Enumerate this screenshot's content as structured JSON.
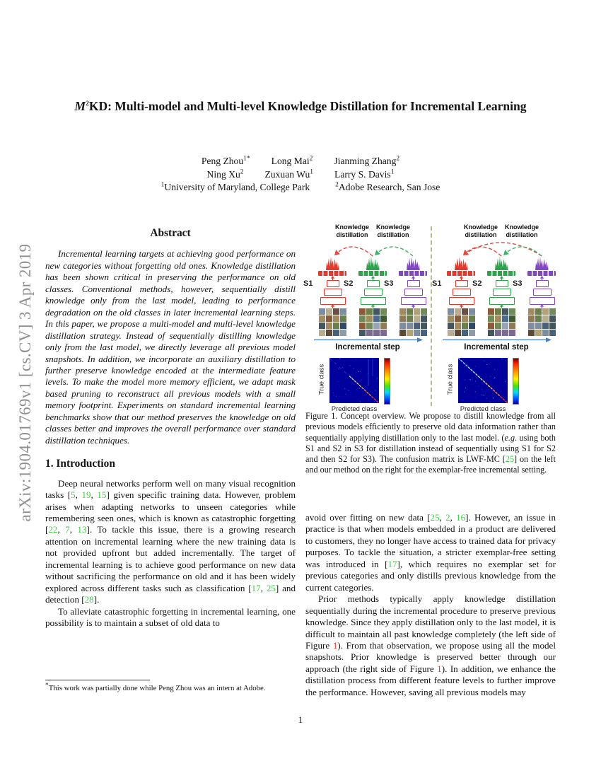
{
  "arxiv_banner": "arXiv:1904.01769v1  [cs.CV]  3 Apr 2019",
  "page_number": "1",
  "title": {
    "m": "M",
    "sup": "2",
    "rest": "KD: Multi-model and Multi-level Knowledge Distillation for Incremental Learning"
  },
  "authors": {
    "rows": [
      [
        {
          "name": "Peng Zhou",
          "sup": "1*"
        },
        {
          "name": "Long Mai",
          "sup": "2"
        },
        {
          "name": "Jianming Zhang",
          "sup": "2"
        }
      ],
      [
        {
          "name": "Ning Xu",
          "sup": "2"
        },
        {
          "name": "Zuxuan Wu",
          "sup": "1"
        },
        {
          "name": "Larry S. Davis",
          "sup": "1"
        }
      ]
    ],
    "affiliations": [
      {
        "sup": "1",
        "name": "University of Maryland, College Park"
      },
      {
        "sup": "2",
        "name": "Adobe Research, San Jose"
      }
    ]
  },
  "abstract": {
    "heading": "Abstract",
    "text": "Incremental learning targets at achieving good performance on new categories without forgetting old ones. Knowledge distillation has been shown critical in preserving the performance on old classes. Conventional methods, however, sequentially distill knowledge only from the last model, leading to performance degradation on the old classes in later incremental learning steps. In this paper, we propose a multi-model and multi-level knowledge distillation strategy. Instead of sequentially distilling knowledge only from the last model, we directly leverage all previous model snapshots. In addition, we incorporate an auxiliary distillation to further preserve knowledge encoded at the intermediate feature levels. To make the model more memory efficient, we adapt mask based pruning to reconstruct all previous models with a small memory footprint. Experiments on standard incremental learning benchmarks show that our method preserves the knowledge on old classes better and improves the overall performance over standard distillation techniques."
  },
  "sections": {
    "intro_heading": "1. Introduction"
  },
  "paragraphs": {
    "intro_p1": [
      {
        "t": "Deep neural networks perform well on many visual recognition tasks ["
      },
      {
        "c": "5"
      },
      {
        "t": ", "
      },
      {
        "c": "19"
      },
      {
        "t": ", "
      },
      {
        "c": "15"
      },
      {
        "t": "] given specific training data. However, problem arises when adapting networks to unseen categories while remembering seen ones, which is known as catastrophic forgetting ["
      },
      {
        "c": "22"
      },
      {
        "t": ", "
      },
      {
        "c": "7"
      },
      {
        "t": ", "
      },
      {
        "c": "13"
      },
      {
        "t": "]. To tackle this issue, there is a growing research attention on incremental learning where the new training data is not provided upfront but added incrementally. The target of incremental learning is to achieve good performance on new data without sacrificing the performance on old and it has been widely explored across different tasks such as classification ["
      },
      {
        "c": "17"
      },
      {
        "t": ", "
      },
      {
        "c": "25"
      },
      {
        "t": "] and detection ["
      },
      {
        "c": "28"
      },
      {
        "t": "]."
      }
    ],
    "intro_p2": [
      {
        "t": "To alleviate catastrophic forgetting in incremental learning, one possibility is to maintain a subset of old data to"
      }
    ],
    "right_p1": [
      {
        "t": "avoid over fitting on new data ["
      },
      {
        "c": "25"
      },
      {
        "t": ", "
      },
      {
        "c": "2"
      },
      {
        "t": ", "
      },
      {
        "c": "16"
      },
      {
        "t": "]. However, an issue in practice is that when models embedded in a product are delivered to customers, they no longer have access to trained data for privacy purposes. To tackle the situation, a stricter exemplar-free setting was introduced in ["
      },
      {
        "c": "17"
      },
      {
        "t": "], which requires no exemplar set for previous categories and only distills previous knowledge from the current categories."
      }
    ],
    "right_p2": [
      {
        "t": "Prior methods typically apply knowledge distillation sequentially during the incremental procedure to preserve previous knowledge. Since they apply distillation only to the last model, it is difficult to maintain all past knowledge completely (the left side of Figure "
      },
      {
        "f": "1"
      },
      {
        "t": "). From that observation, we propose using all the model snapshots. Prior knowledge is preserved better through our approach (the right side of Figure "
      },
      {
        "f": "1"
      },
      {
        "t": "). In addition, we enhance the distillation process from different feature levels to further improve the performance. However, saving all previous models may"
      }
    ]
  },
  "caption": [
    {
      "t": "Figure 1. Concept overview. We propose to distill knowledge from all previous models efficiently to preserve old data information rather than sequentially applying distillation only to the last model. ("
    },
    {
      "i": "e.g"
    },
    {
      "t": ". using both S1 and S2 in S3 for distillation instead of sequentially using S1 for S2 and then S2 for S3). The confusion matrix is LWF-MC ["
    },
    {
      "c": "25"
    },
    {
      "t": "] on the left and our method on the right for the exemplar-free incremental setting."
    }
  ],
  "footnote": [
    {
      "s": "*"
    },
    {
      "t": "This work was partially done while Peng Zhou was an intern at Adobe."
    }
  ],
  "figure": {
    "colors": {
      "s1": "#e23a2c",
      "s2": "#2da34c",
      "s3": "#8248c4",
      "arrow_red": "#e84438",
      "arrow_green": "#3bb563",
      "step_arrow": "#4a7ebb",
      "matrix_bg": "#00009c"
    },
    "panels": [
      {
        "models": [
          "S1",
          "S2",
          "S3"
        ],
        "kd_labels": [
          "Knowledge distillation",
          "Knowledge distillation"
        ],
        "arrows": [
          {
            "from": 1,
            "to": 0,
            "color": "arrow_red"
          },
          {
            "from": 2,
            "to": 1,
            "color": "arrow_green"
          }
        ],
        "step_label": "Incremental step",
        "matrix": {
          "ylabel": "True class",
          "xlabel": "Predicted class",
          "diagonal": "partial"
        }
      },
      {
        "models": [
          "S1",
          "S2",
          "S3"
        ],
        "kd_labels": [
          "Knowledge distillation",
          "Knowledge distillation"
        ],
        "arrows": [
          {
            "from": 1,
            "to": 0,
            "color": "arrow_red"
          },
          {
            "from": 2,
            "to": 0,
            "color": "arrow_red"
          },
          {
            "from": 2,
            "to": 1,
            "color": "arrow_green"
          }
        ],
        "step_label": "Incremental step",
        "matrix": {
          "ylabel": "True class",
          "xlabel": "Predicted class",
          "diagonal": "full"
        }
      }
    ]
  }
}
